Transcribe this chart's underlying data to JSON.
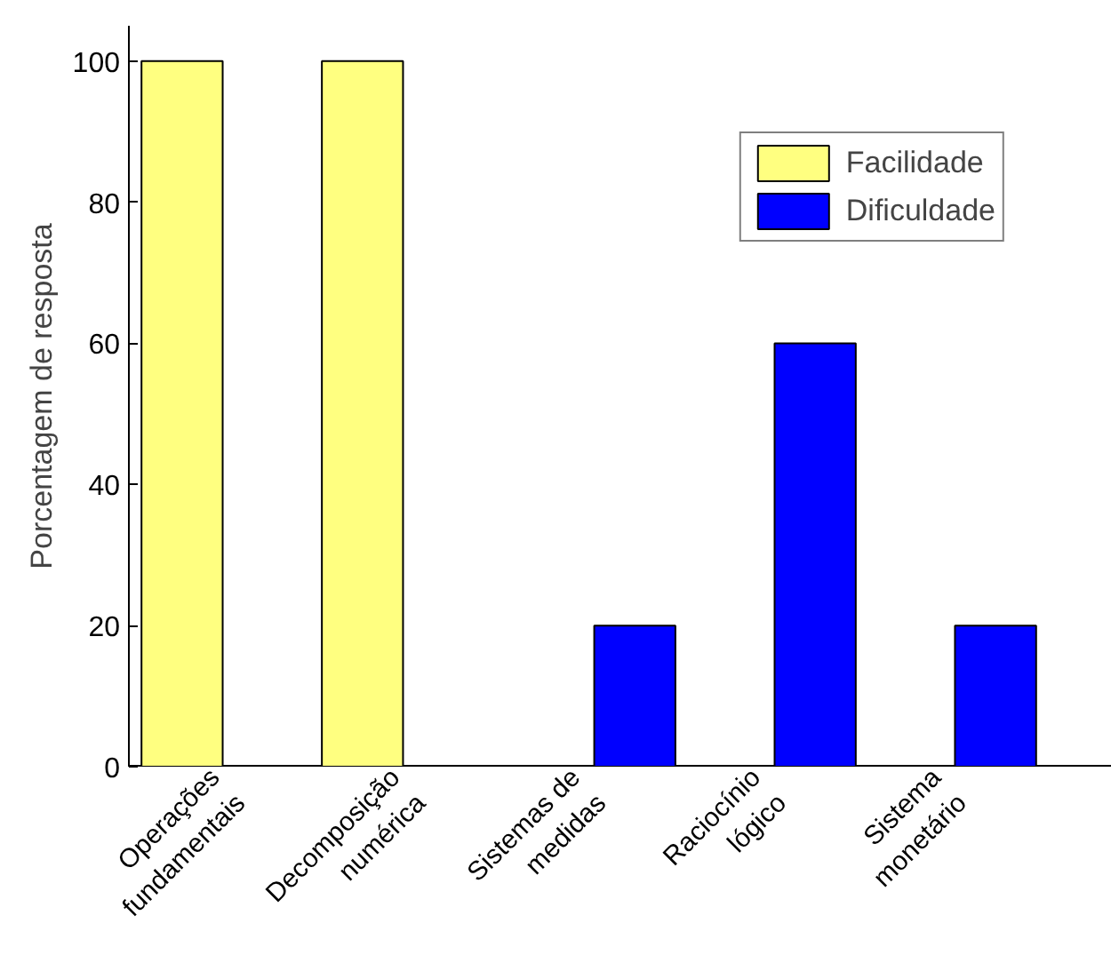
{
  "chart_data": {
    "type": "bar",
    "ylabel": "Porcentagem de resposta",
    "categories": [
      "Operações\nfundamentais",
      "Decomposição\nnumérica",
      "Sistemas de\nmedidas",
      "Raciocínio\nlógico",
      "Sistema\nmonetário"
    ],
    "series": [
      {
        "name": "Facilidade",
        "color": "#ffff80",
        "values": [
          100,
          100,
          null,
          null,
          null
        ]
      },
      {
        "name": "Dificuldade",
        "color": "#0000ff",
        "values": [
          null,
          null,
          20,
          60,
          20
        ]
      }
    ],
    "ylim": [
      0,
      105
    ],
    "yticks": [
      0,
      20,
      40,
      60,
      80,
      100
    ],
    "grid": false,
    "legend": "top right"
  }
}
